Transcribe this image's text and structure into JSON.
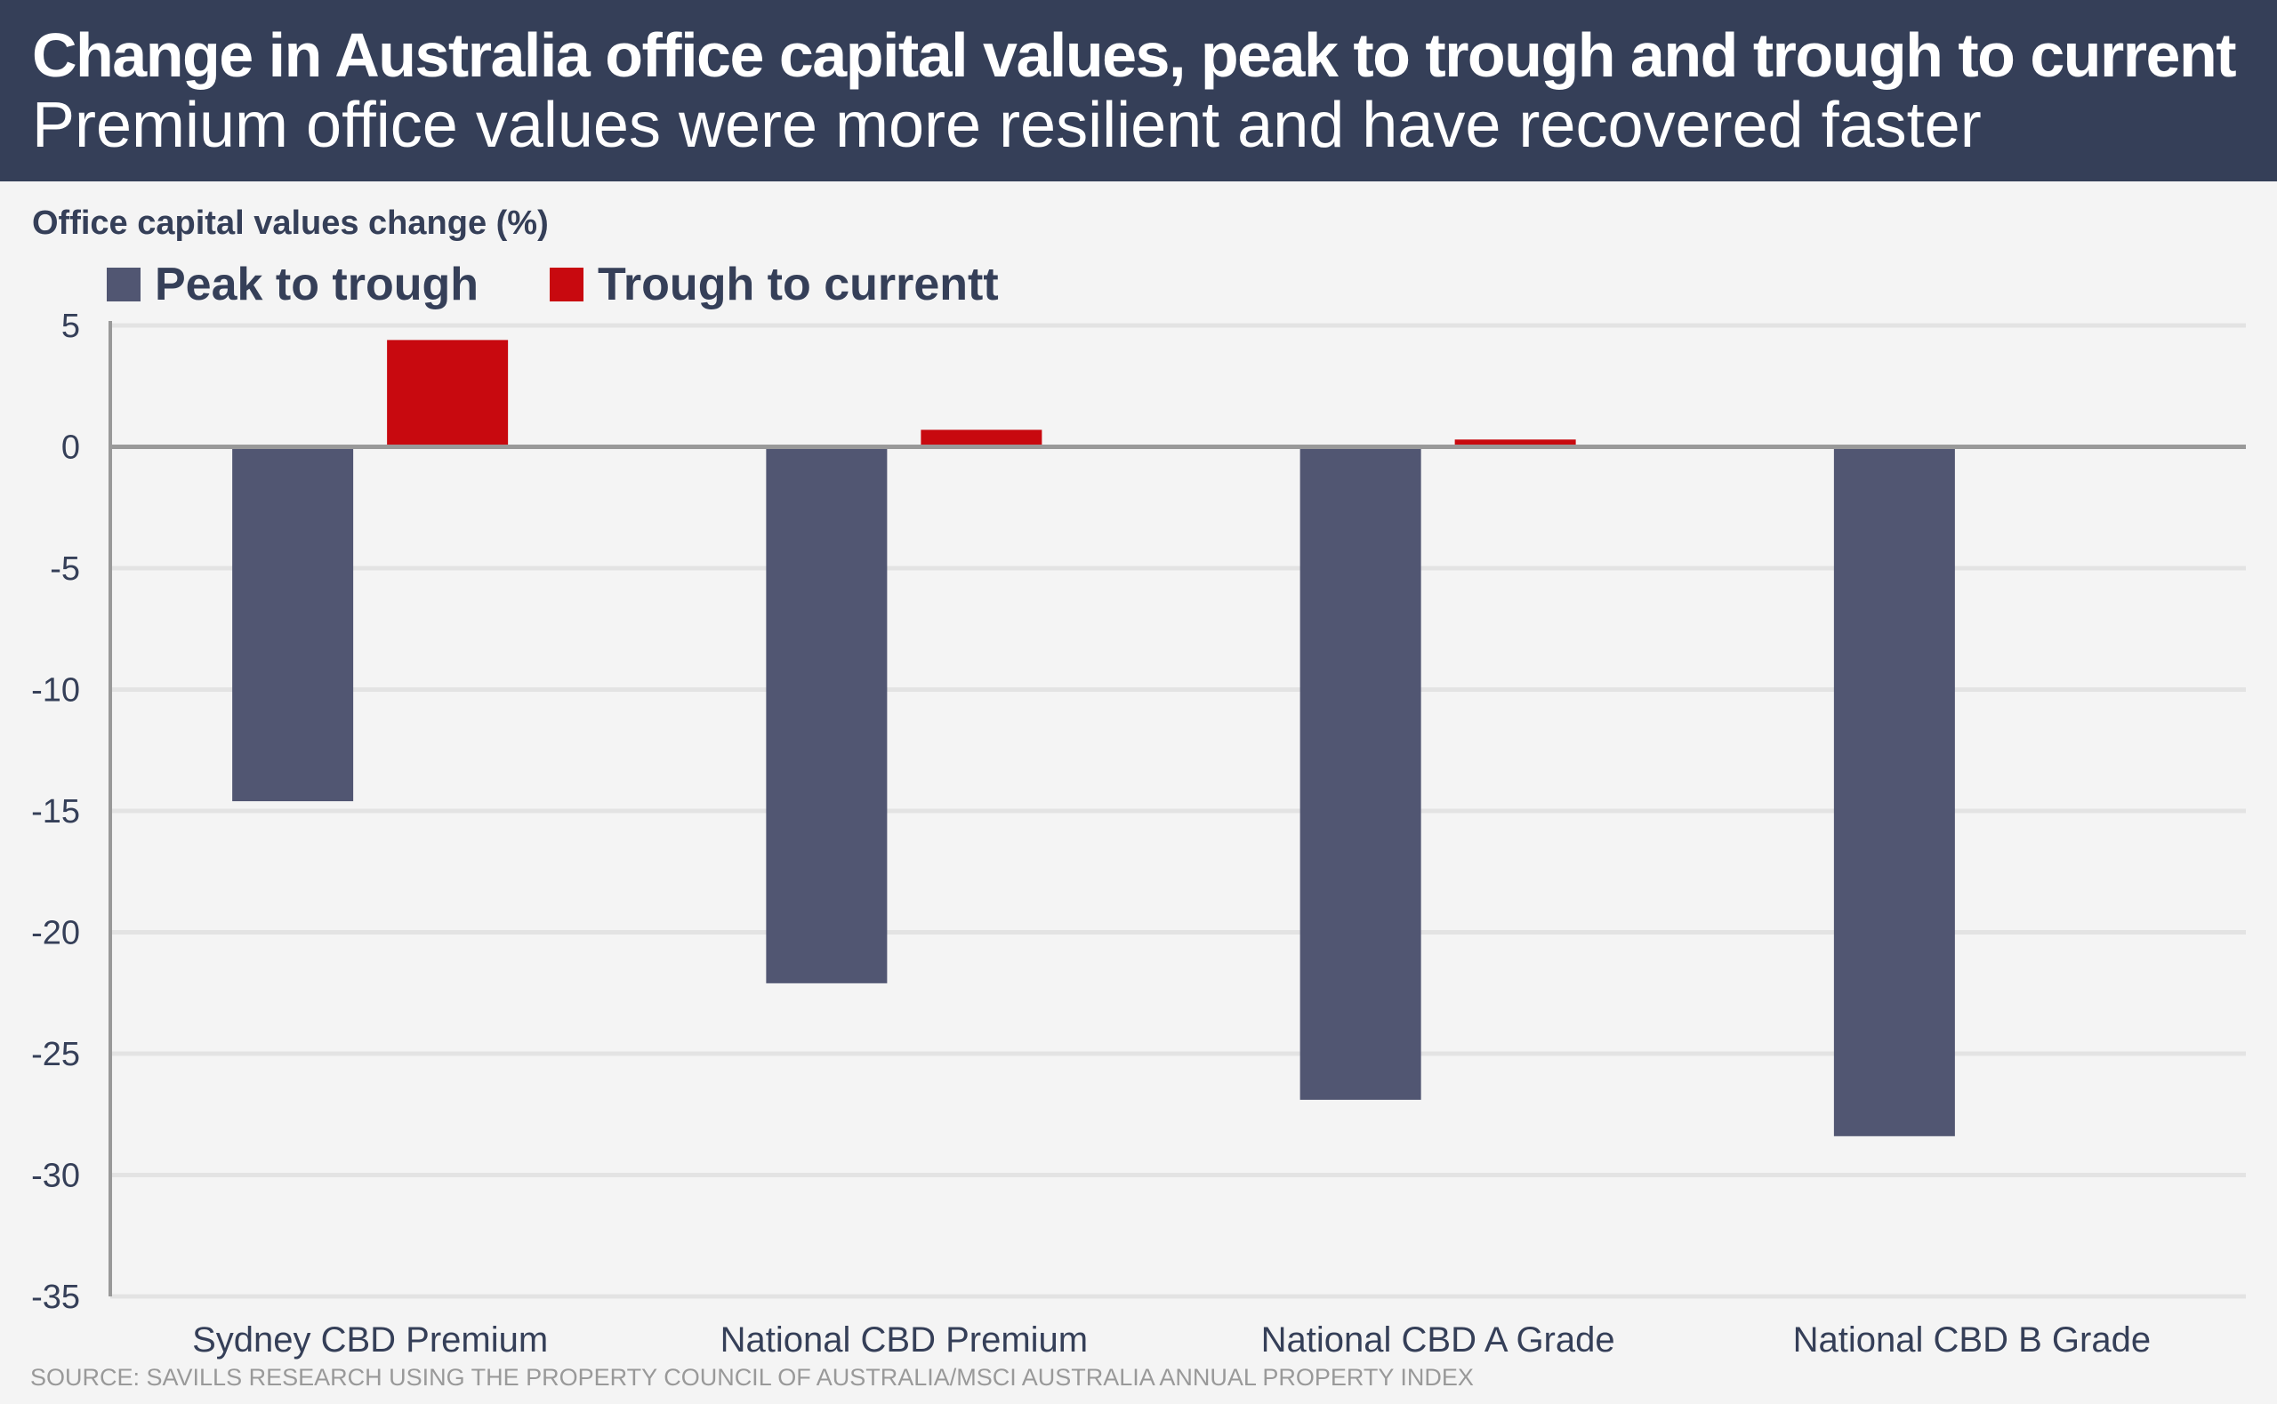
{
  "header": {
    "title": "Change in Australia office capital values, peak to trough and trough to current",
    "subtitle": "Premium office values were more resilient and have recovered faster"
  },
  "source": "SOURCE: SAVILLS RESEARCH USING THE PROPERTY COUNCIL OF AUSTRALIA/MSCI AUSTRALIA ANNUAL PROPERTY INDEX",
  "chart_data": {
    "type": "bar",
    "ylabel": "Office capital values change (%)",
    "categories": [
      "Sydney CBD Premium",
      "National CBD Premium",
      "National CBD A Grade",
      "National CBD B Grade"
    ],
    "series": [
      {
        "name": "Peak to trough",
        "color": "#515672",
        "values": [
          -14.6,
          -22.1,
          -26.9,
          -28.4
        ]
      },
      {
        "name": "Trough to currentt",
        "color": "#c8090f",
        "values": [
          4.4,
          0.7,
          0.3,
          null
        ]
      }
    ],
    "ylim": [
      -35,
      5
    ],
    "yticks": [
      5,
      0,
      -5,
      -10,
      -15,
      -20,
      -25,
      -30,
      -35
    ],
    "grid": true,
    "legend": "top-left"
  }
}
